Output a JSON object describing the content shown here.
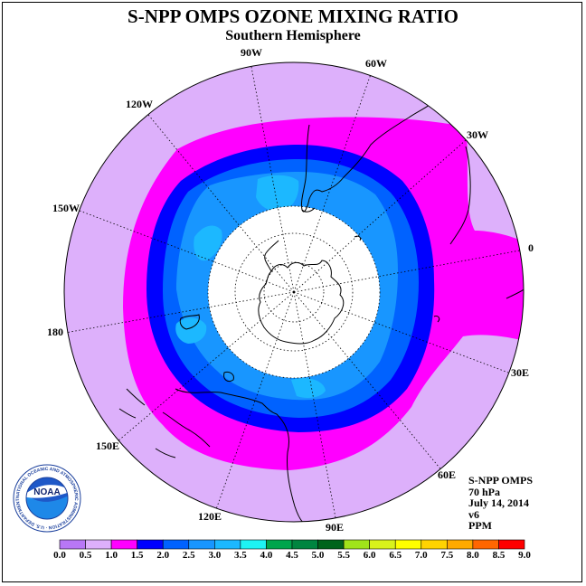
{
  "title": "S-NPP OMPS OZONE MIXING RATIO",
  "subtitle": "Southern Hemisphere",
  "longitude_labels": [
    "90W",
    "60W",
    "30W",
    "0",
    "30E",
    "60E",
    "90E",
    "120E",
    "150E",
    "180",
    "150W",
    "120W"
  ],
  "info": {
    "instrument": "S-NPP OMPS",
    "level": "70 hPa",
    "date": "July 14, 2014",
    "version": "v6",
    "units": "PPM"
  },
  "logo_text": "NOAA",
  "logo_ring_text": "NATIONAL OCEANIC AND ATMOSPHERIC ADMINISTRATION · U.S. DEPARTMENT OF COMMERCE",
  "colorbar": {
    "labels": [
      "0.0",
      "0.5",
      "1.0",
      "1.5",
      "2.0",
      "2.5",
      "3.0",
      "3.5",
      "4.0",
      "4.5",
      "5.0",
      "5.5",
      "6.0",
      "6.5",
      "7.0",
      "7.5",
      "8.0",
      "8.5",
      "9.0"
    ],
    "colors": [
      "#b877f6",
      "#ddb0fb",
      "#ff00ff",
      "#0000ff",
      "#0062ff",
      "#1896ff",
      "#1cb8ff",
      "#1df3f3",
      "#00a54c",
      "#008540",
      "#00641b",
      "#a0e41a",
      "#d9f21c",
      "#ffff00",
      "#ffd300",
      "#ffaa00",
      "#ff6600",
      "#ff0000",
      "#7a5030"
    ]
  },
  "colors": {
    "band_0_5_1_0": "#ddb0fb",
    "band_1_0_1_5": "#ff00ff",
    "band_1_5_2_0": "#0000ff",
    "band_2_0_2_5": "#0062ff",
    "band_2_5_3_0": "#1896ff",
    "band_3_0_3_5": "#1cb8ff",
    "no_data": "#ffffff"
  }
}
